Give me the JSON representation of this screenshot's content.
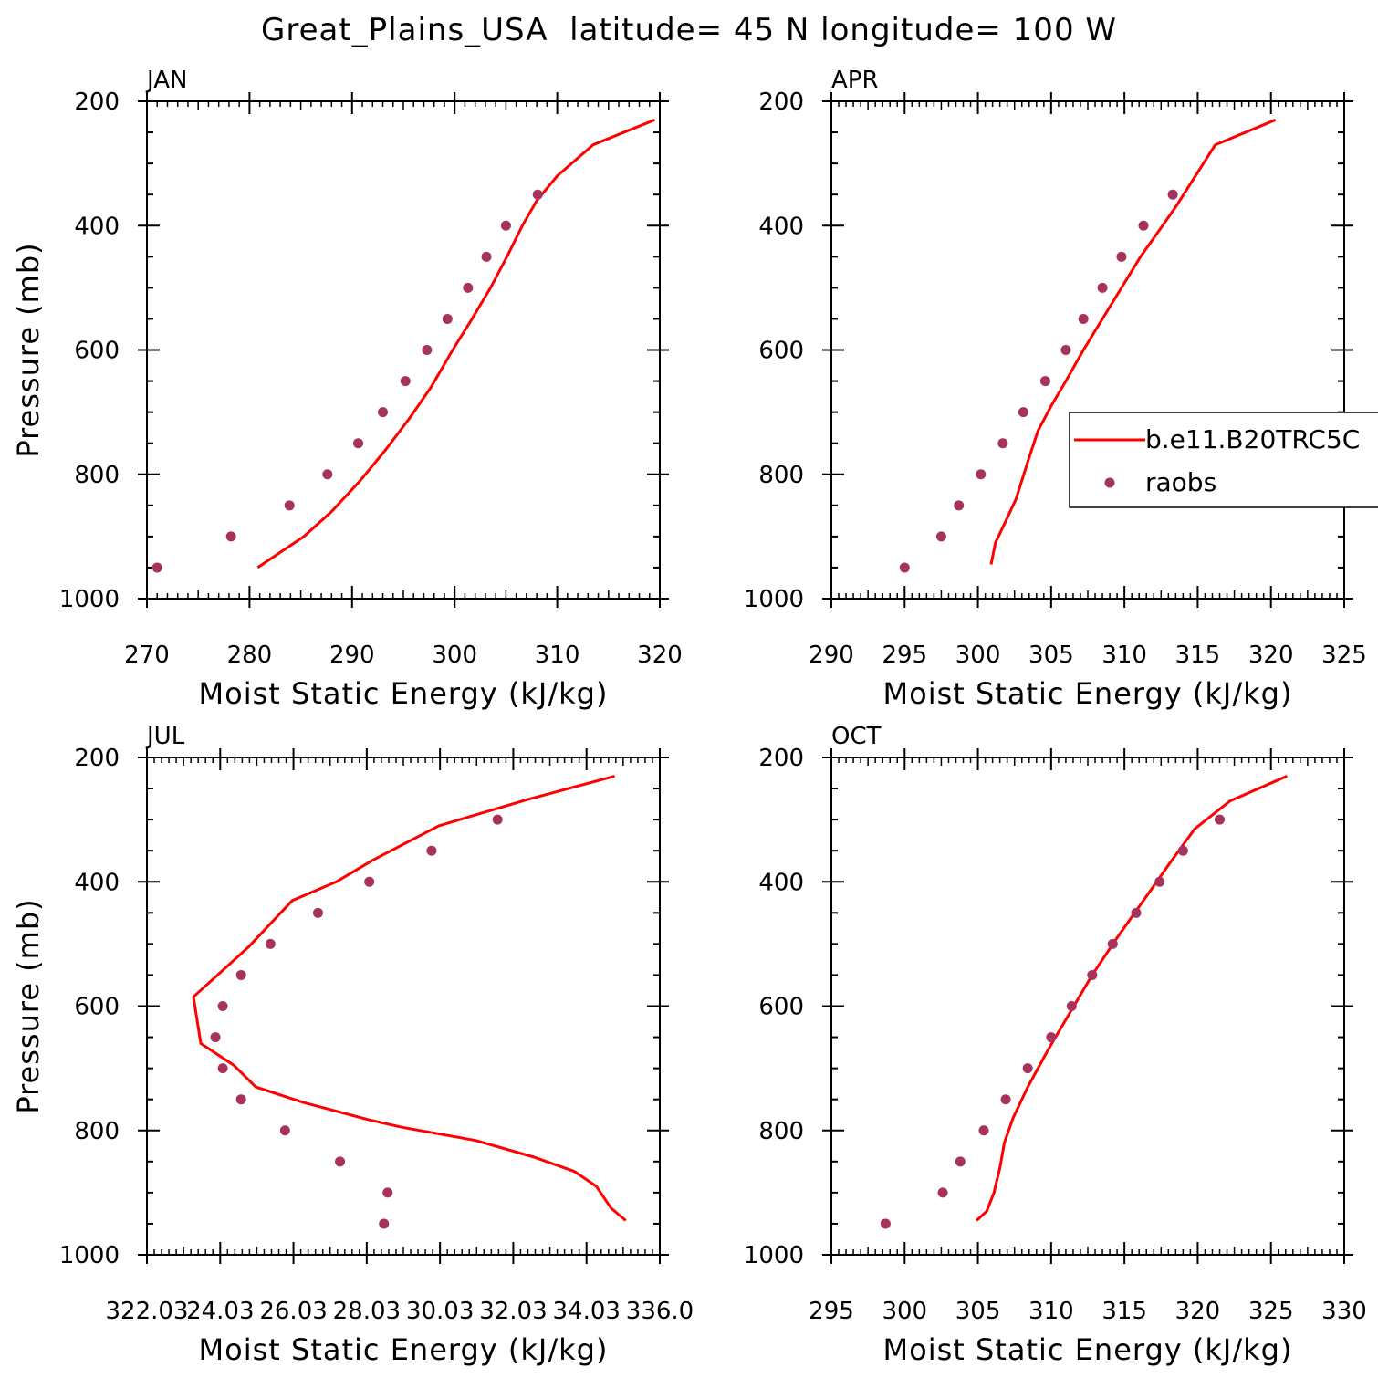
{
  "figure": {
    "title": "Great_Plains_USA  latitude= 45 N longitude= 100 W"
  },
  "colors": {
    "model": "#ff0000",
    "obs": "#a8325e"
  },
  "legend": {
    "model_label": "b.e11.B20TRC5C",
    "obs_label": "raobs",
    "location": "APR panel, right edge"
  },
  "chart_data": [
    {
      "type": "line",
      "panel_title": "JAN",
      "xlabel": "Moist Static Energy (kJ/kg)",
      "ylabel": "Pressure (mb)",
      "xlim": [
        270,
        320
      ],
      "ylim": [
        1000,
        200
      ],
      "x_ticks": [
        270,
        280,
        290,
        300,
        310,
        320
      ],
      "x_tick_labels": [
        "270",
        "280",
        "290",
        "300",
        "310",
        "320"
      ],
      "y_ticks": [
        200,
        400,
        600,
        800,
        1000
      ],
      "y_tick_labels": [
        "200",
        "400",
        "600",
        "800",
        "1000"
      ],
      "series": [
        {
          "name": "b.e11.B20TRC5C",
          "style": "line",
          "x": [
            280.8,
            282.6,
            285.3,
            288.0,
            290.8,
            293.3,
            295.6,
            297.7,
            299.8,
            301.7,
            303.5,
            305.1,
            306.6,
            308.0,
            310.0,
            313.5,
            319.5
          ],
          "y": [
            950,
            930,
            900,
            860,
            810,
            760,
            710,
            660,
            600,
            550,
            500,
            450,
            400,
            360,
            320,
            270,
            230
          ]
        },
        {
          "name": "raobs",
          "style": "points",
          "x": [
            271.0,
            278.2,
            283.9,
            287.6,
            290.6,
            293.0,
            295.2,
            297.3,
            299.3,
            301.3,
            303.1,
            305.0,
            308.1
          ],
          "y": [
            950,
            900,
            850,
            800,
            750,
            700,
            650,
            600,
            550,
            500,
            450,
            400,
            350
          ]
        }
      ]
    },
    {
      "type": "line",
      "panel_title": "APR",
      "xlabel": "Moist Static Energy (kJ/kg)",
      "ylabel": "",
      "xlim": [
        290,
        325
      ],
      "ylim": [
        1000,
        200
      ],
      "x_ticks": [
        290,
        295,
        300,
        305,
        310,
        315,
        320,
        325
      ],
      "x_tick_labels": [
        "290",
        "295",
        "300",
        "305",
        "310",
        "315",
        "320",
        "325"
      ],
      "y_ticks": [
        200,
        400,
        600,
        800,
        1000
      ],
      "y_tick_labels": [
        "200",
        "400",
        "600",
        "800",
        "1000"
      ],
      "series": [
        {
          "name": "b.e11.B20TRC5C",
          "style": "line",
          "x": [
            300.9,
            301.2,
            301.8,
            302.6,
            303.4,
            304.1,
            305.0,
            306.0,
            307.2,
            308.5,
            309.8,
            311.1,
            312.3,
            313.5,
            316.2,
            320.3
          ],
          "y": [
            945,
            910,
            880,
            840,
            780,
            730,
            690,
            650,
            600,
            550,
            500,
            450,
            410,
            370,
            270,
            230
          ]
        },
        {
          "name": "raobs",
          "style": "points",
          "x": [
            295.0,
            297.5,
            298.7,
            300.2,
            301.7,
            303.1,
            304.6,
            306.0,
            307.2,
            308.5,
            309.8,
            311.3,
            313.3
          ],
          "y": [
            950,
            900,
            850,
            800,
            750,
            700,
            650,
            600,
            550,
            500,
            450,
            400,
            350
          ]
        }
      ]
    },
    {
      "type": "line",
      "panel_title": "JUL",
      "xlabel": "Moist Static Energy (kJ/kg)",
      "ylabel": "Pressure (mb)",
      "xlim": [
        322.03,
        336.03
      ],
      "ylim": [
        1000,
        200
      ],
      "x_ticks": [
        322.03,
        324.03,
        326.03,
        328.03,
        330.03,
        332.03,
        334.03,
        336.03
      ],
      "x_tick_labels": [
        "322.03",
        "24.03",
        "26.03",
        "28.03",
        "30.03",
        "32.03",
        "34.03",
        "336.0"
      ],
      "y_ticks": [
        200,
        400,
        600,
        800,
        1000
      ],
      "y_tick_labels": [
        "200",
        "400",
        "600",
        "800",
        "1000"
      ],
      "series": [
        {
          "name": "b.e11.B20TRC5C",
          "style": "line",
          "x": [
            335.1,
            334.7,
            334.3,
            333.7,
            332.6,
            331.0,
            329.0,
            328.1,
            326.3,
            325.0,
            324.4,
            323.5,
            323.3,
            324.8,
            326.0,
            327.2,
            328.2,
            330.0,
            332.4,
            334.8
          ],
          "y": [
            945,
            925,
            890,
            866,
            843,
            816,
            795,
            783,
            755,
            730,
            695,
            660,
            585,
            505,
            430,
            400,
            365,
            310,
            268,
            230
          ]
        },
        {
          "name": "raobs",
          "style": "points",
          "x": [
            328.5,
            328.6,
            327.3,
            325.8,
            324.6,
            324.1,
            323.9,
            324.1,
            324.6,
            325.4,
            326.7,
            328.1,
            329.8,
            331.6
          ],
          "y": [
            950,
            900,
            850,
            800,
            750,
            700,
            650,
            600,
            550,
            500,
            450,
            400,
            350,
            300
          ]
        }
      ]
    },
    {
      "type": "line",
      "panel_title": "OCT",
      "xlabel": "Moist Static Energy (kJ/kg)",
      "ylabel": "",
      "xlim": [
        295,
        330
      ],
      "ylim": [
        1000,
        200
      ],
      "x_ticks": [
        295,
        300,
        305,
        310,
        315,
        320,
        325,
        330
      ],
      "x_tick_labels": [
        "295",
        "300",
        "305",
        "310",
        "315",
        "320",
        "325",
        "330"
      ],
      "y_ticks": [
        200,
        400,
        600,
        800,
        1000
      ],
      "y_tick_labels": [
        "200",
        "400",
        "600",
        "800",
        "1000"
      ],
      "series": [
        {
          "name": "b.e11.B20TRC5C",
          "style": "line",
          "x": [
            304.9,
            305.6,
            306.1,
            306.5,
            306.8,
            307.4,
            308.4,
            309.8,
            311.3,
            312.8,
            314.5,
            316.3,
            318.1,
            319.8,
            322.2,
            326.1
          ],
          "y": [
            945,
            930,
            900,
            860,
            820,
            780,
            730,
            670,
            610,
            550,
            490,
            430,
            370,
            315,
            270,
            230
          ]
        },
        {
          "name": "raobs",
          "style": "points",
          "x": [
            298.7,
            302.6,
            303.8,
            305.4,
            306.9,
            308.4,
            310.0,
            311.4,
            312.8,
            314.2,
            315.8,
            317.4,
            319.0,
            321.5
          ],
          "y": [
            950,
            900,
            850,
            800,
            750,
            700,
            650,
            600,
            550,
            500,
            450,
            400,
            350,
            300
          ]
        }
      ]
    }
  ]
}
